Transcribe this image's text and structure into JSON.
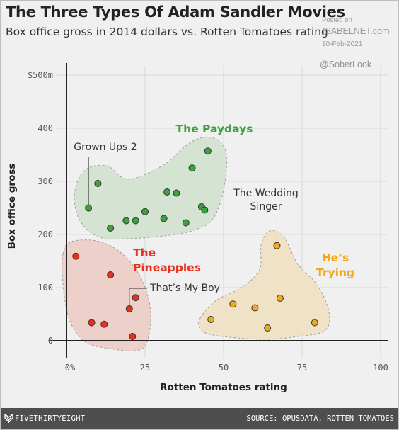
{
  "chart_data": {
    "type": "scatter",
    "title": "The Three Types Of Adam Sandler Movies",
    "subtitle": "Box office gross in 2014 dollars vs. Rotten Tomatoes rating",
    "xlabel": "Rotten Tomatoes rating",
    "ylabel": "Box office gross",
    "xlim": [
      0,
      100
    ],
    "ylim": [
      0,
      500
    ],
    "x_ticks": [
      {
        "value": 0,
        "label": "0%"
      },
      {
        "value": 25,
        "label": "25"
      },
      {
        "value": 50,
        "label": "50"
      },
      {
        "value": 75,
        "label": "75"
      },
      {
        "value": 100,
        "label": "100"
      }
    ],
    "y_ticks": [
      {
        "value": 0,
        "label": "0"
      },
      {
        "value": 100,
        "label": "100"
      },
      {
        "value": 200,
        "label": "200"
      },
      {
        "value": 300,
        "label": "300"
      },
      {
        "value": 400,
        "label": "400"
      },
      {
        "value": 500,
        "label": "$500m"
      }
    ],
    "grid": true,
    "series": [
      {
        "name": "The Paydays",
        "color": "#3da13d",
        "fill": "#d5e3d2",
        "points": [
          {
            "x": 7,
            "y": 250
          },
          {
            "x": 10,
            "y": 296
          },
          {
            "x": 14,
            "y": 212
          },
          {
            "x": 19,
            "y": 226
          },
          {
            "x": 22,
            "y": 226
          },
          {
            "x": 25,
            "y": 243
          },
          {
            "x": 31,
            "y": 230
          },
          {
            "x": 32,
            "y": 280
          },
          {
            "x": 35,
            "y": 278
          },
          {
            "x": 38,
            "y": 222
          },
          {
            "x": 40,
            "y": 325
          },
          {
            "x": 43,
            "y": 252
          },
          {
            "x": 44,
            "y": 246
          },
          {
            "x": 45,
            "y": 357
          }
        ]
      },
      {
        "name": "The Pineapples",
        "color": "#e8301e",
        "fill": "#eed0cb",
        "points": [
          {
            "x": 3,
            "y": 159
          },
          {
            "x": 8,
            "y": 34
          },
          {
            "x": 12,
            "y": 31
          },
          {
            "x": 14,
            "y": 124
          },
          {
            "x": 20,
            "y": 60
          },
          {
            "x": 21,
            "y": 8
          },
          {
            "x": 22,
            "y": 81
          }
        ]
      },
      {
        "name": "He’s Trying",
        "color": "#f0a81c",
        "fill": "#f0e2c6",
        "points": [
          {
            "x": 46,
            "y": 40
          },
          {
            "x": 53,
            "y": 69
          },
          {
            "x": 60,
            "y": 62
          },
          {
            "x": 64,
            "y": 24
          },
          {
            "x": 67,
            "y": 179
          },
          {
            "x": 68,
            "y": 80
          },
          {
            "x": 79,
            "y": 34
          }
        ]
      }
    ],
    "annotations": [
      {
        "lines": [
          "Grown Ups 2"
        ],
        "x": 7,
        "y": 250
      },
      {
        "lines": [
          "The Wedding",
          "Singer"
        ],
        "x": 67,
        "y": 179
      },
      {
        "lines": [
          "That’s My Boy"
        ],
        "x": 20,
        "y": 60
      }
    ],
    "group_labels": [
      {
        "lines": [
          "The Paydays"
        ],
        "color": "#3da13d"
      },
      {
        "lines": [
          "The",
          "Pineapples"
        ],
        "color": "#e8301e"
      },
      {
        "lines": [
          "He’s",
          "Trying"
        ],
        "color": "#f0a81c"
      }
    ]
  },
  "watermark": {
    "posted_on": "Posted on",
    "site": "ISABELNET.com",
    "date": "10-Feb-2021",
    "handle": "@SoberLook"
  },
  "footer": {
    "logo": "FIVETHIRTYEIGHT",
    "logo_icon": "fivethirtyeight-logo-icon",
    "source": "SOURCE: OPUSDATA, ROTTEN TOMATOES"
  }
}
